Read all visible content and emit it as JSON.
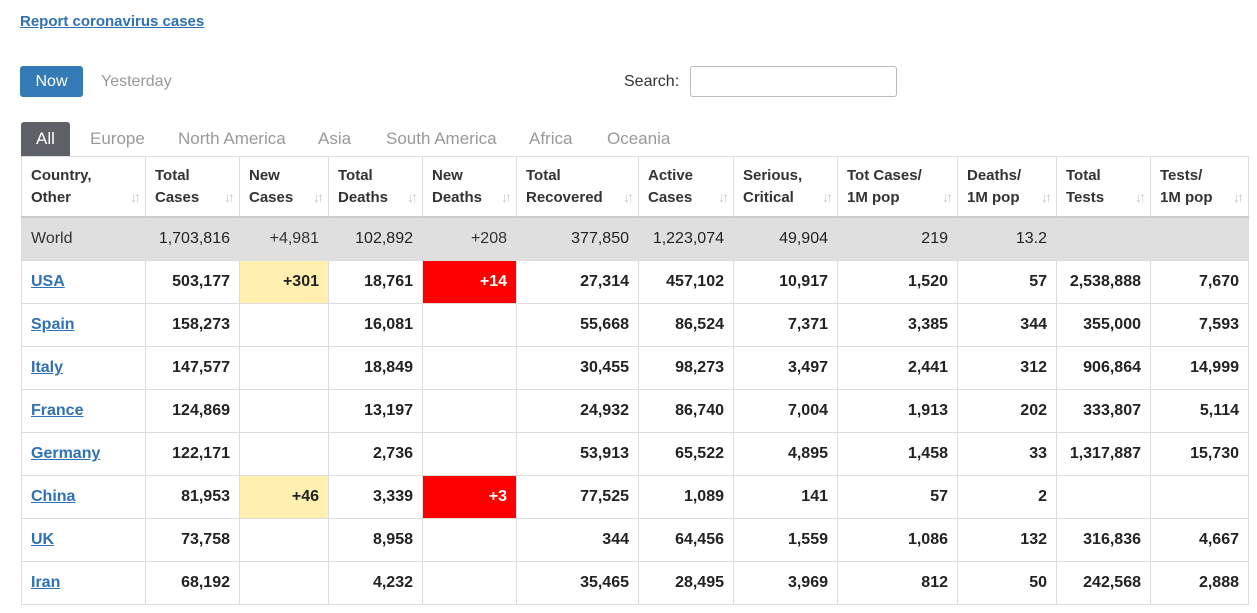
{
  "report_link": "Report coronavirus cases",
  "toolbar": {
    "now_label": "Now",
    "yesterday_label": "Yesterday"
  },
  "search": {
    "label": "Search:",
    "value": "",
    "placeholder": ""
  },
  "tabs": [
    "All",
    "Europe",
    "North America",
    "Asia",
    "South America",
    "Africa",
    "Oceania"
  ],
  "active_tab": "All",
  "columns": [
    [
      "Country,",
      "Other"
    ],
    [
      "Total",
      "Cases"
    ],
    [
      "New",
      "Cases"
    ],
    [
      "Total",
      "Deaths"
    ],
    [
      "New",
      "Deaths"
    ],
    [
      "Total",
      "Recovered"
    ],
    [
      "Active",
      "Cases"
    ],
    [
      "Serious,",
      "Critical"
    ],
    [
      "Tot Cases/",
      "1M pop"
    ],
    [
      "Deaths/",
      "1M pop"
    ],
    [
      "Total",
      "Tests"
    ],
    [
      "Tests/",
      "1M pop"
    ]
  ],
  "sort_icon": "sort-arrows-icon",
  "world": [
    "World",
    "1,703,816",
    "+4,981",
    "102,892",
    "+208",
    "377,850",
    "1,223,074",
    "49,904",
    "219",
    "13.2",
    "",
    ""
  ],
  "rows": [
    [
      "USA",
      "503,177",
      "+301",
      "18,761",
      "+14",
      "27,314",
      "457,102",
      "10,917",
      "1,520",
      "57",
      "2,538,888",
      "7,670"
    ],
    [
      "Spain",
      "158,273",
      "",
      "16,081",
      "",
      "55,668",
      "86,524",
      "7,371",
      "3,385",
      "344",
      "355,000",
      "7,593"
    ],
    [
      "Italy",
      "147,577",
      "",
      "18,849",
      "",
      "30,455",
      "98,273",
      "3,497",
      "2,441",
      "312",
      "906,864",
      "14,999"
    ],
    [
      "France",
      "124,869",
      "",
      "13,197",
      "",
      "24,932",
      "86,740",
      "7,004",
      "1,913",
      "202",
      "333,807",
      "5,114"
    ],
    [
      "Germany",
      "122,171",
      "",
      "2,736",
      "",
      "53,913",
      "65,522",
      "4,895",
      "1,458",
      "33",
      "1,317,887",
      "15,730"
    ],
    [
      "China",
      "81,953",
      "+46",
      "3,339",
      "+3",
      "77,525",
      "1,089",
      "141",
      "57",
      "2",
      "",
      ""
    ],
    [
      "UK",
      "73,758",
      "",
      "8,958",
      "",
      "344",
      "64,456",
      "1,559",
      "1,086",
      "132",
      "316,836",
      "4,667"
    ],
    [
      "Iran",
      "68,192",
      "",
      "4,232",
      "",
      "35,465",
      "28,495",
      "3,969",
      "812",
      "50",
      "242,568",
      "2,888"
    ]
  ],
  "colors": {
    "accent": "#337ab7",
    "link": "#2f71b5",
    "new_cases_bg": "#fff0b0",
    "new_deaths_bg": "#ff0000",
    "world_bg": "#dfdfdf"
  }
}
